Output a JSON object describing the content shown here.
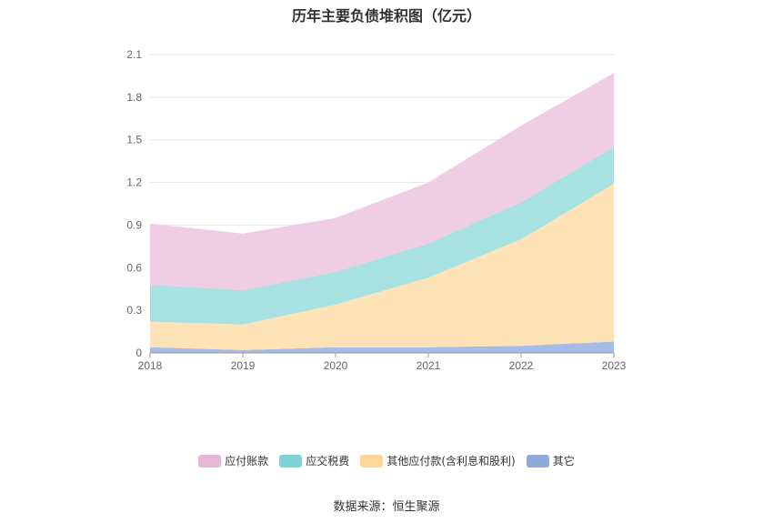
{
  "chart_data": {
    "type": "area",
    "stacked": true,
    "title": "历年主要负债堆积图（亿元）",
    "x": [
      "2018",
      "2019",
      "2020",
      "2021",
      "2022",
      "2023"
    ],
    "y_ticks": [
      "0",
      "0.3",
      "0.6",
      "0.9",
      "1.2",
      "1.5",
      "1.8",
      "2.1"
    ],
    "ylim": [
      0,
      2.1
    ],
    "grid": true,
    "legend_position": "bottom",
    "series": [
      {
        "name": "其它",
        "color": "#a5bde6",
        "legend_color": "#8faadc",
        "values": [
          0.04,
          0.02,
          0.04,
          0.04,
          0.05,
          0.08
        ]
      },
      {
        "name": "其他应付款(含利息和股利)",
        "color": "#fde3b6",
        "legend_color": "#fdd698",
        "values": [
          0.18,
          0.18,
          0.3,
          0.49,
          0.75,
          1.11
        ]
      },
      {
        "name": "应交税费",
        "color": "#a8e1e2",
        "legend_color": "#7fd3d5",
        "values": [
          0.26,
          0.24,
          0.23,
          0.24,
          0.26,
          0.26
        ]
      },
      {
        "name": "应付账款",
        "color": "#efcde4",
        "legend_color": "#e8b7d8",
        "values": [
          0.43,
          0.4,
          0.38,
          0.43,
          0.54,
          0.52
        ]
      }
    ],
    "legend_order": [
      3,
      2,
      1,
      0
    ]
  },
  "source_text": "数据来源：恒生聚源"
}
